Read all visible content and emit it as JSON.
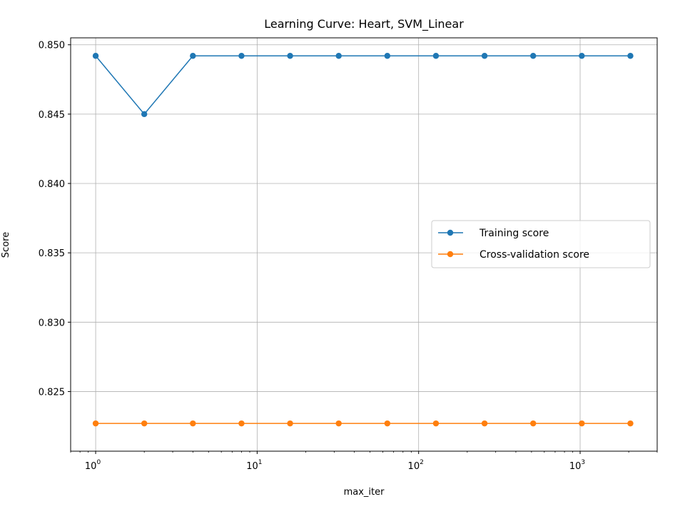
{
  "chart_data": {
    "type": "line",
    "title": "Learning Curve: Heart, SVM_Linear",
    "xlabel": "max_iter",
    "ylabel": "Score",
    "x_scale": "log",
    "xlim": [
      0.7,
      3000
    ],
    "ylim": [
      0.8207,
      0.8505
    ],
    "grid": true,
    "legend_position": "center-right",
    "x": [
      1,
      2,
      4,
      8,
      16,
      32,
      64,
      128,
      256,
      512,
      1024,
      2048
    ],
    "x_ticks": [
      {
        "value": 1,
        "base": "10",
        "exp": "0"
      },
      {
        "value": 10,
        "base": "10",
        "exp": "1"
      },
      {
        "value": 100,
        "base": "10",
        "exp": "2"
      },
      {
        "value": 1000,
        "base": "10",
        "exp": "3"
      }
    ],
    "y_ticks": [
      {
        "value": 0.825,
        "label": "0.825"
      },
      {
        "value": 0.83,
        "label": "0.830"
      },
      {
        "value": 0.835,
        "label": "0.835"
      },
      {
        "value": 0.84,
        "label": "0.840"
      },
      {
        "value": 0.845,
        "label": "0.845"
      },
      {
        "value": 0.85,
        "label": "0.850"
      }
    ],
    "series": [
      {
        "name": "Training score",
        "color": "#1f77b4",
        "values": [
          0.8492,
          0.845,
          0.8492,
          0.8492,
          0.8492,
          0.8492,
          0.8492,
          0.8492,
          0.8492,
          0.8492,
          0.8492,
          0.8492
        ]
      },
      {
        "name": "Cross-validation score",
        "color": "#ff7f0e",
        "values": [
          0.8227,
          0.8227,
          0.8227,
          0.8227,
          0.8227,
          0.8227,
          0.8227,
          0.8227,
          0.8227,
          0.8227,
          0.8227,
          0.8227
        ]
      }
    ]
  }
}
